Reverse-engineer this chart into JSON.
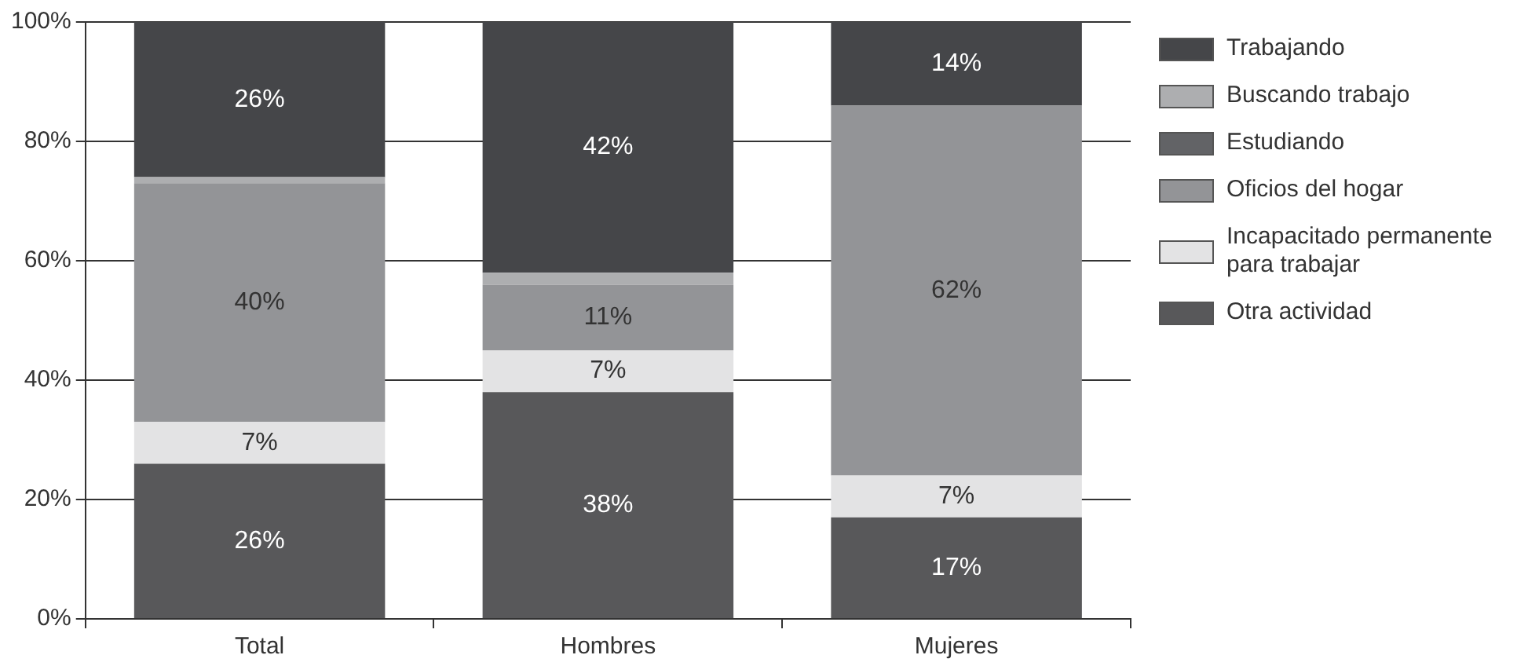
{
  "chart_data": {
    "type": "bar",
    "stacked": true,
    "categories": [
      "Total",
      "Hombres",
      "Mujeres"
    ],
    "series": [
      {
        "name": "Otra actividad",
        "color": "#58585a",
        "values": [
          26,
          38,
          17
        ],
        "value_labels": [
          "26%",
          "38%",
          "17%"
        ]
      },
      {
        "name": "Incapacitado permanente para trabajar",
        "color": "#e3e3e4",
        "values": [
          7,
          7,
          7
        ],
        "value_labels": [
          "7%",
          "7%",
          "7%"
        ]
      },
      {
        "name": "Oficios del hogar",
        "color": "#939497",
        "values": [
          40,
          11,
          62
        ],
        "value_labels": [
          "40%",
          "11%",
          "62%"
        ]
      },
      {
        "name": "Estudiando",
        "color": "#626366",
        "values": [
          0,
          0,
          0
        ],
        "value_labels": [
          null,
          null,
          null
        ]
      },
      {
        "name": "Buscando trabajo",
        "color": "#adaeb0",
        "values": [
          1,
          2,
          0
        ],
        "value_labels": [
          null,
          null,
          null
        ]
      },
      {
        "name": "Trabajando",
        "color": "#454649",
        "values": [
          26,
          42,
          14
        ],
        "value_labels": [
          "26%",
          "42%",
          "14%"
        ]
      }
    ],
    "ylim": [
      0,
      100
    ],
    "yticks": [
      {
        "value": 0,
        "label": "0%"
      },
      {
        "value": 20,
        "label": "20%"
      },
      {
        "value": 40,
        "label": "40%"
      },
      {
        "value": 60,
        "label": "60%"
      },
      {
        "value": 80,
        "label": "80%"
      },
      {
        "value": 100,
        "label": "100%"
      }
    ],
    "grid": "y",
    "legend": "right"
  }
}
